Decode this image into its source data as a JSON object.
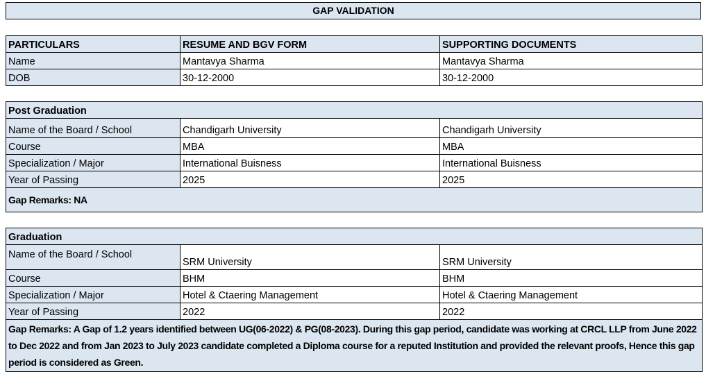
{
  "title": "GAP VALIDATION",
  "header": {
    "col1": "PARTICULARS",
    "col2": "RESUME AND BGV FORM",
    "col3": "SUPPORTING DOCUMENTS"
  },
  "personal": [
    {
      "label": "Name",
      "resume": "Mantavya Sharma",
      "docs": "Mantavya Sharma"
    },
    {
      "label": "DOB",
      "resume": "30-12-2000",
      "docs": "30-12-2000"
    }
  ],
  "post_graduation": {
    "heading": "Post Graduation",
    "rows": [
      {
        "label": "Name of the Board / School",
        "resume": "Chandigarh University",
        "docs": "Chandigarh University"
      },
      {
        "label": "Course",
        "resume": "MBA",
        "docs": "MBA"
      },
      {
        "label": "Specialization / Major",
        "resume": "International Buisness",
        "docs": "International Buisness"
      },
      {
        "label": "Year of Passing",
        "resume": "2025",
        "docs": "2025"
      }
    ],
    "remarks": "Gap Remarks: NA"
  },
  "graduation": {
    "heading": "Graduation",
    "rows": [
      {
        "label": "Name of the Board / School",
        "resume": "SRM University",
        "docs": "SRM University"
      },
      {
        "label": "Course",
        "resume": "BHM",
        "docs": "BHM"
      },
      {
        "label": "Specialization / Major",
        "resume": "Hotel & Ctaering Management",
        "docs": "Hotel & Ctaering Management"
      },
      {
        "label": "Year of Passing",
        "resume": "2022",
        "docs": "2022"
      }
    ],
    "remarks": "Gap Remarks: A Gap of 1.2 years identified between UG(06-2022) & PG(08-2023). During this gap period, candidate was working at CRCL LLP from June 2022 to Dec 2022 and from Jan 2023 to July 2023 candidate completed a Diploma course for a reputed Institution and provided the relevant proofs, Hence this gap period is considered as Green."
  }
}
